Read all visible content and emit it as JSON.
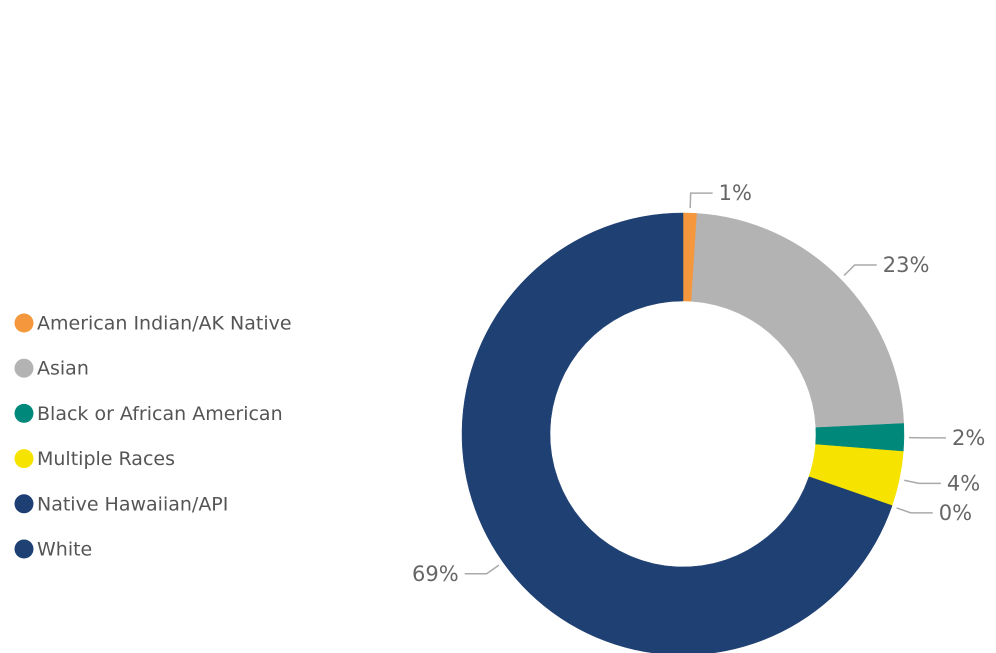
{
  "chart_data": {
    "type": "donut",
    "categories": [
      "American Indian/AK Native",
      "Asian",
      "Black or African American",
      "Multiple Races",
      "Native Hawaiian/API",
      "White"
    ],
    "values": [
      1,
      23,
      2,
      4,
      0,
      69
    ],
    "value_labels": [
      "1%",
      "23%",
      "2%",
      "4%",
      "0%",
      "69%"
    ],
    "colors": [
      "#f5973d",
      "#b3b3b3",
      "#00897b",
      "#f7e300",
      "#1d3f73",
      "#1f4073"
    ],
    "legend": "left"
  }
}
